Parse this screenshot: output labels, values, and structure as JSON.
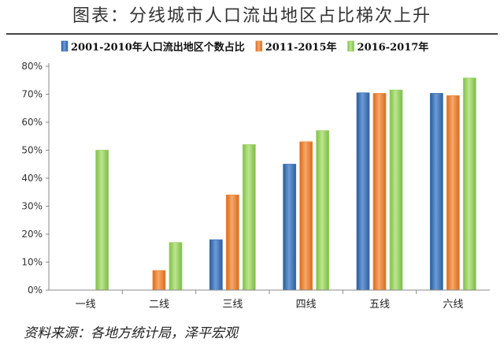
{
  "header": {
    "title": "图表：分线城市人口流出地区占比梯次上升"
  },
  "footer": {
    "source": "资料来源：各地方统计局，泽平宏观"
  },
  "chart_data": {
    "type": "bar",
    "categories": [
      "一线",
      "二线",
      "三线",
      "四线",
      "五线",
      "六线"
    ],
    "series": [
      {
        "name": "2001-2010年人口流出地区个数占比",
        "color": "#3E74B8",
        "values": [
          0,
          0,
          18,
          45,
          70.5,
          70.3
        ]
      },
      {
        "name": "2011-2015年",
        "color": "#F28A3C",
        "values": [
          0,
          7,
          34,
          53,
          70.3,
          69.5
        ]
      },
      {
        "name": "2016-2017年",
        "color": "#9DD36A",
        "values": [
          50,
          17,
          52,
          57,
          71.5,
          75.8
        ]
      }
    ],
    "yticks": [
      "0%",
      "10%",
      "20%",
      "30%",
      "40%",
      "50%",
      "60%",
      "70%",
      "80%"
    ],
    "ylim": [
      0,
      80
    ],
    "legend_position": "top",
    "grid": false
  }
}
